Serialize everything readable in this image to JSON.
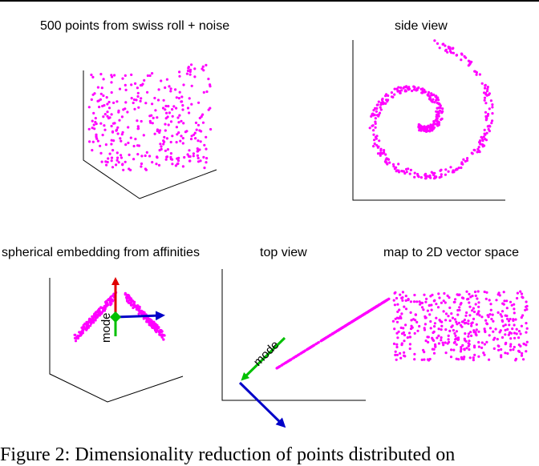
{
  "figure": {
    "panels": {
      "swiss_roll": {
        "title": "500 points from swiss roll + noise"
      },
      "side_view": {
        "title": "side view"
      },
      "spherical": {
        "title": "spherical embedding from affinities",
        "mode_label": "mode"
      },
      "top_view": {
        "title": "top view",
        "mode_label": "mode"
      },
      "map2d": {
        "title": "map to 2D vector space"
      }
    },
    "caption": "Figure 2: Dimensionality reduction of points distributed on"
  },
  "colors": {
    "points": "#ff00ff",
    "axis_red": "#e00000",
    "axis_green": "#00c000",
    "axis_blue": "#0000c8",
    "axis_lines": "#000000"
  }
}
